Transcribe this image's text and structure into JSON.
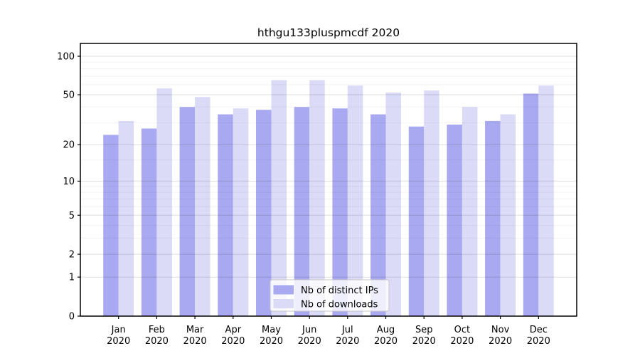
{
  "chart_data": {
    "type": "bar",
    "title": "hthgu133pluspmcdf 2020",
    "categories": [
      "Jan",
      "Feb",
      "Mar",
      "Apr",
      "May",
      "Jun",
      "Jul",
      "Aug",
      "Sep",
      "Oct",
      "Nov",
      "Dec"
    ],
    "category_year": "2020",
    "series": [
      {
        "name": "Nb of distinct IPs",
        "color": "#a9a9f1",
        "values": [
          24,
          27,
          40,
          35,
          38,
          40,
          39,
          35,
          28,
          29,
          31,
          51
        ]
      },
      {
        "name": "Nb of downloads",
        "color": "#dbdbf8",
        "values": [
          31,
          56,
          48,
          39,
          65,
          65,
          59,
          52,
          54,
          40,
          35,
          59
        ]
      }
    ],
    "xlabel": "",
    "ylabel": "",
    "yscale": "log1p",
    "ylim": [
      0,
      126
    ],
    "y_major_ticks": [
      0,
      1,
      2,
      5,
      10,
      20,
      50,
      100
    ],
    "y_minor_gridlines": [
      3,
      4,
      6,
      7,
      8,
      9,
      15,
      30,
      40,
      60,
      70,
      80,
      90
    ],
    "grid": true,
    "legend_position": "lower center"
  },
  "style": {
    "spine_color": "#000000",
    "major_grid_color": "rgba(0,0,0,0.13)",
    "minor_grid_color": "rgba(0,0,0,0.05)",
    "tick_label_color": "#000000",
    "legend_border_color": "#c9c9c9",
    "legend_bg_color": "rgba(255,255,255,0.8)"
  }
}
